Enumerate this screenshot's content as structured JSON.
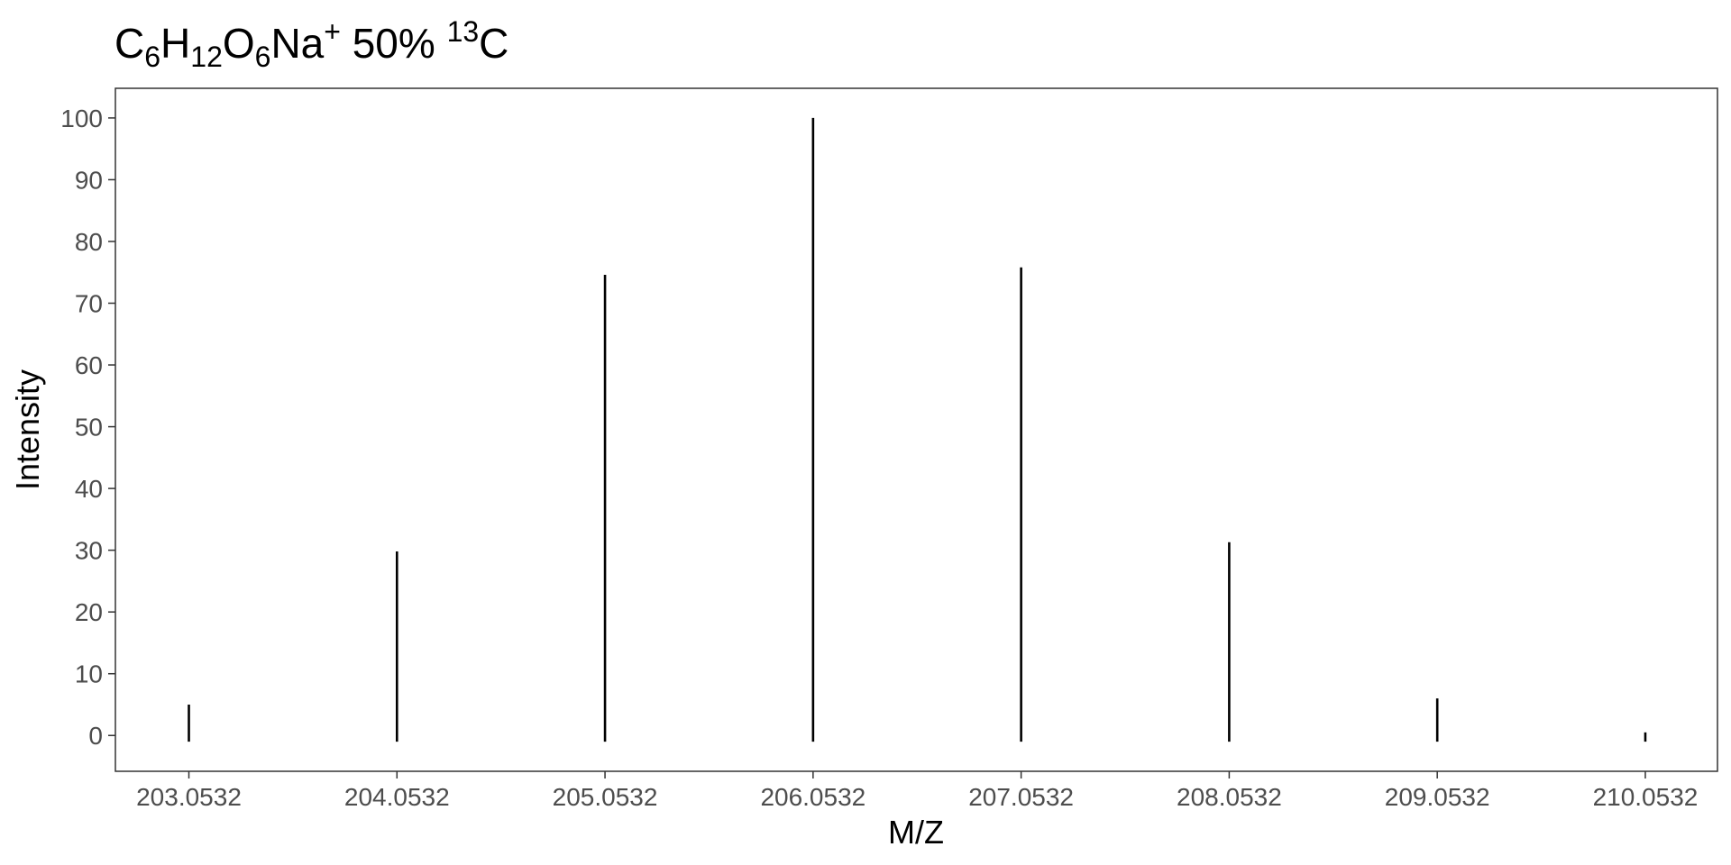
{
  "chart_data": {
    "type": "bar",
    "title": {
      "base1": "C",
      "sub1": "6",
      "base2": "H",
      "sub2": "12",
      "base3": "O",
      "sub3": "6",
      "base4": "Na",
      "sup1": "+",
      "base5": " 50% ",
      "sup2": "13",
      "base6": "C"
    },
    "xlabel": "M/Z",
    "ylabel": "Intensity",
    "x": [
      203.0532,
      204.0532,
      205.0532,
      206.0532,
      207.0532,
      208.0532,
      209.0532,
      210.0532
    ],
    "x_tick_labels": [
      "203.0532",
      "204.0532",
      "205.0532",
      "206.0532",
      "207.0532",
      "208.0532",
      "209.0532",
      "210.0532"
    ],
    "values": [
      5,
      29.8,
      74.6,
      100,
      75.8,
      31.3,
      6,
      0.5
    ],
    "y_ticks": [
      0,
      10,
      20,
      30,
      40,
      50,
      60,
      70,
      80,
      90,
      100
    ],
    "y_tick_labels": [
      "0",
      "10",
      "20",
      "30",
      "40",
      "50",
      "60",
      "70",
      "80",
      "90",
      "100"
    ],
    "xlim": [
      202.7,
      210.4
    ],
    "ylim": [
      -5.8,
      104.8
    ],
    "grid": false,
    "bar_color": "#000000",
    "panel_border_color": "#333333"
  }
}
